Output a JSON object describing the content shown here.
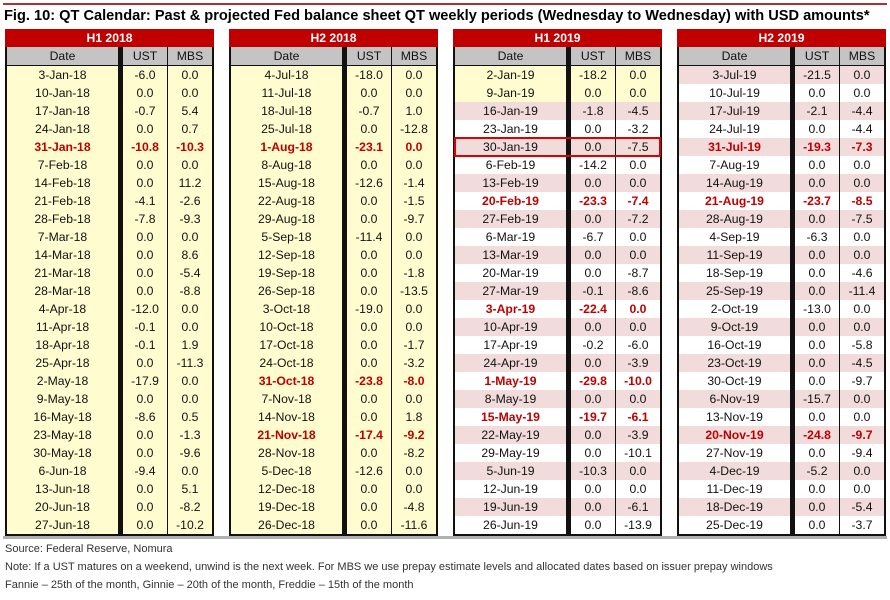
{
  "title": "Fig. 10: QT Calendar: Past & projected Fed balance sheet QT weekly periods (Wednesday to Wednesday) with USD amounts*",
  "columns": {
    "date": "Date",
    "ust": "UST",
    "mbs": "MBS"
  },
  "colors": {
    "header_red": "#c00000",
    "header_gray": "#c4c4c4",
    "yellow": "#fffdd0",
    "pink": "#f2dcdb",
    "highlight_text": "#c00000"
  },
  "tables": [
    {
      "label": "H1 2018",
      "rows": [
        [
          "3-Jan-18",
          "-6.0",
          "0.0"
        ],
        [
          "10-Jan-18",
          "0.0",
          "0.0"
        ],
        [
          "17-Jan-18",
          "-0.7",
          "5.4"
        ],
        [
          "24-Jan-18",
          "0.0",
          "0.7"
        ],
        [
          "31-Jan-18",
          "-10.8",
          "-10.3",
          "red"
        ],
        [
          "7-Feb-18",
          "0.0",
          "0.0"
        ],
        [
          "14-Feb-18",
          "0.0",
          "11.2"
        ],
        [
          "21-Feb-18",
          "-4.1",
          "-2.6"
        ],
        [
          "28-Feb-18",
          "-7.8",
          "-9.3"
        ],
        [
          "7-Mar-18",
          "0.0",
          "0.0"
        ],
        [
          "14-Mar-18",
          "0.0",
          "8.6"
        ],
        [
          "21-Mar-18",
          "0.0",
          "-5.4"
        ],
        [
          "28-Mar-18",
          "0.0",
          "-8.8"
        ],
        [
          "4-Apr-18",
          "-12.0",
          "0.0"
        ],
        [
          "11-Apr-18",
          "-0.1",
          "0.0"
        ],
        [
          "18-Apr-18",
          "-0.1",
          "1.9"
        ],
        [
          "25-Apr-18",
          "0.0",
          "-11.3"
        ],
        [
          "2-May-18",
          "-17.9",
          "0.0"
        ],
        [
          "9-May-18",
          "0.0",
          "0.0"
        ],
        [
          "16-May-18",
          "-8.6",
          "0.5"
        ],
        [
          "23-May-18",
          "0.0",
          "-1.3"
        ],
        [
          "30-May-18",
          "0.0",
          "-9.6"
        ],
        [
          "6-Jun-18",
          "-9.4",
          "0.0"
        ],
        [
          "13-Jun-18",
          "0.0",
          "5.1"
        ],
        [
          "20-Jun-18",
          "0.0",
          "-8.2"
        ],
        [
          "27-Jun-18",
          "0.0",
          "-10.2"
        ]
      ]
    },
    {
      "label": "H2 2018",
      "rows": [
        [
          "4-Jul-18",
          "-18.0",
          "0.0"
        ],
        [
          "11-Jul-18",
          "0.0",
          "0.0"
        ],
        [
          "18-Jul-18",
          "-0.7",
          "1.0"
        ],
        [
          "25-Jul-18",
          "0.0",
          "-12.8"
        ],
        [
          "1-Aug-18",
          "-23.1",
          "0.0",
          "red"
        ],
        [
          "8-Aug-18",
          "0.0",
          "0.0"
        ],
        [
          "15-Aug-18",
          "-12.6",
          "-1.4"
        ],
        [
          "22-Aug-18",
          "0.0",
          "-1.5"
        ],
        [
          "29-Aug-18",
          "0.0",
          "-9.7"
        ],
        [
          "5-Sep-18",
          "-11.4",
          "0.0"
        ],
        [
          "12-Sep-18",
          "0.0",
          "0.0"
        ],
        [
          "19-Sep-18",
          "0.0",
          "-1.8"
        ],
        [
          "26-Sep-18",
          "0.0",
          "-13.5"
        ],
        [
          "3-Oct-18",
          "-19.0",
          "0.0"
        ],
        [
          "10-Oct-18",
          "0.0",
          "0.0"
        ],
        [
          "17-Oct-18",
          "0.0",
          "-1.7"
        ],
        [
          "24-Oct-18",
          "0.0",
          "-3.2"
        ],
        [
          "31-Oct-18",
          "-23.8",
          "-8.0",
          "red"
        ],
        [
          "7-Nov-18",
          "0.0",
          "0.0"
        ],
        [
          "14-Nov-18",
          "0.0",
          "1.8"
        ],
        [
          "21-Nov-18",
          "-17.4",
          "-9.2",
          "red"
        ],
        [
          "28-Nov-18",
          "0.0",
          "-8.2"
        ],
        [
          "5-Dec-18",
          "-12.6",
          "0.0"
        ],
        [
          "12-Dec-18",
          "0.0",
          "0.0"
        ],
        [
          "19-Dec-18",
          "0.0",
          "-4.8"
        ],
        [
          "26-Dec-18",
          "0.0",
          "-11.6"
        ]
      ]
    },
    {
      "label": "H1 2019",
      "rows": [
        [
          "2-Jan-19",
          "-18.2",
          "0.0"
        ],
        [
          "9-Jan-19",
          "0.0",
          "0.0"
        ],
        [
          "16-Jan-19",
          "-1.8",
          "-4.5"
        ],
        [
          "23-Jan-19",
          "0.0",
          "-3.2"
        ],
        [
          "30-Jan-19",
          "0.0",
          "-7.5",
          "boxed"
        ],
        [
          "6-Feb-19",
          "-14.2",
          "0.0"
        ],
        [
          "13-Feb-19",
          "0.0",
          "0.0"
        ],
        [
          "20-Feb-19",
          "-23.3",
          "-7.4",
          "red"
        ],
        [
          "27-Feb-19",
          "0.0",
          "-7.2"
        ],
        [
          "6-Mar-19",
          "-6.7",
          "0.0"
        ],
        [
          "13-Mar-19",
          "0.0",
          "0.0"
        ],
        [
          "20-Mar-19",
          "0.0",
          "-8.7"
        ],
        [
          "27-Mar-19",
          "-0.1",
          "-8.6"
        ],
        [
          "3-Apr-19",
          "-22.4",
          "0.0",
          "red"
        ],
        [
          "10-Apr-19",
          "0.0",
          "0.0"
        ],
        [
          "17-Apr-19",
          "-0.2",
          "-6.0"
        ],
        [
          "24-Apr-19",
          "0.0",
          "-3.9"
        ],
        [
          "1-May-19",
          "-29.8",
          "-10.0",
          "red"
        ],
        [
          "8-May-19",
          "0.0",
          "0.0"
        ],
        [
          "15-May-19",
          "-19.7",
          "-6.1",
          "red"
        ],
        [
          "22-May-19",
          "0.0",
          "-3.9"
        ],
        [
          "29-May-19",
          "0.0",
          "-10.1"
        ],
        [
          "5-Jun-19",
          "-10.3",
          "0.0"
        ],
        [
          "12-Jun-19",
          "0.0",
          "0.0"
        ],
        [
          "19-Jun-19",
          "0.0",
          "-6.1"
        ],
        [
          "26-Jun-19",
          "0.0",
          "-13.9"
        ]
      ]
    },
    {
      "label": "H2 2019",
      "rows": [
        [
          "3-Jul-19",
          "-21.5",
          "0.0"
        ],
        [
          "10-Jul-19",
          "0.0",
          "0.0"
        ],
        [
          "17-Jul-19",
          "-2.1",
          "-4.4"
        ],
        [
          "24-Jul-19",
          "0.0",
          "-4.4"
        ],
        [
          "31-Jul-19",
          "-19.3",
          "-7.3",
          "red"
        ],
        [
          "7-Aug-19",
          "0.0",
          "0.0"
        ],
        [
          "14-Aug-19",
          "0.0",
          "0.0"
        ],
        [
          "21-Aug-19",
          "-23.7",
          "-8.5",
          "red"
        ],
        [
          "28-Aug-19",
          "0.0",
          "-7.5"
        ],
        [
          "4-Sep-19",
          "-6.3",
          "0.0"
        ],
        [
          "11-Sep-19",
          "0.0",
          "0.0"
        ],
        [
          "18-Sep-19",
          "0.0",
          "-4.6"
        ],
        [
          "25-Sep-19",
          "0.0",
          "-11.4"
        ],
        [
          "2-Oct-19",
          "-13.0",
          "0.0"
        ],
        [
          "9-Oct-19",
          "0.0",
          "0.0"
        ],
        [
          "16-Oct-19",
          "0.0",
          "-5.8"
        ],
        [
          "23-Oct-19",
          "0.0",
          "-4.5"
        ],
        [
          "30-Oct-19",
          "0.0",
          "-9.7"
        ],
        [
          "6-Nov-19",
          "-15.7",
          "0.0"
        ],
        [
          "13-Nov-19",
          "0.0",
          "0.0"
        ],
        [
          "20-Nov-19",
          "-24.8",
          "-9.7",
          "red"
        ],
        [
          "27-Nov-19",
          "0.0",
          "-9.4"
        ],
        [
          "4-Dec-19",
          "-5.2",
          "0.0"
        ],
        [
          "11-Dec-19",
          "0.0",
          "0.0"
        ],
        [
          "18-Dec-19",
          "0.0",
          "-5.4"
        ],
        [
          "25-Dec-19",
          "0.0",
          "-3.7"
        ]
      ]
    }
  ],
  "footer": {
    "source": "Source: Federal Reserve, Nomura",
    "note": "Note: If a UST matures on a weekend, unwind is the next week. For MBS we use prepay estimate levels and allocated dates based on issuer prepay windows",
    "windows": " Fannie – 25th of the month, Ginnie – 20th of the month, Freddie – 15th of the month"
  }
}
